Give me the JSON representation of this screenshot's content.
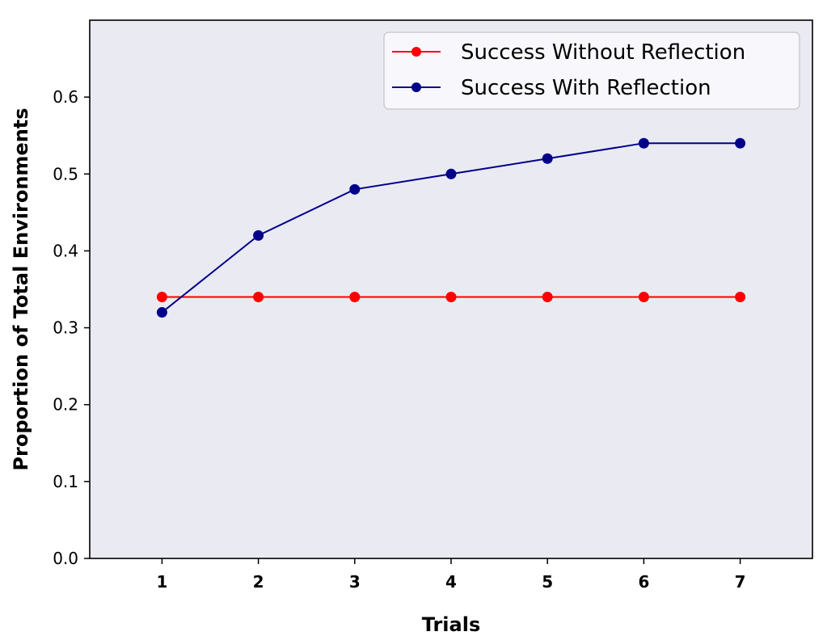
{
  "chart_data": {
    "type": "line",
    "title": "",
    "xlabel": "Trials",
    "ylabel": "Proportion of Total Environments",
    "x": [
      1,
      2,
      3,
      4,
      5,
      6,
      7
    ],
    "xlim": [
      0.25,
      7.75
    ],
    "ylim": [
      0,
      0.7
    ],
    "yticks": [
      0.0,
      0.1,
      0.2,
      0.3,
      0.4,
      0.5,
      0.6
    ],
    "ytick_labels": [
      "0.0",
      "0.1",
      "0.2",
      "0.3",
      "0.4",
      "0.5",
      "0.6"
    ],
    "xtick_labels": [
      "1",
      "2",
      "3",
      "4",
      "5",
      "6",
      "7"
    ],
    "grid": false,
    "legend_position": "top-right",
    "background_color": "#eaeaf2",
    "series": [
      {
        "name": "Success Without Reflection",
        "color": "#ff0000",
        "marker": "circle",
        "values": [
          0.34,
          0.34,
          0.34,
          0.34,
          0.34,
          0.34,
          0.34
        ]
      },
      {
        "name": "Success With Reflection",
        "color": "#00008b",
        "marker": "circle",
        "values": [
          0.32,
          0.42,
          0.48,
          0.5,
          0.52,
          0.54,
          0.54
        ]
      }
    ]
  }
}
